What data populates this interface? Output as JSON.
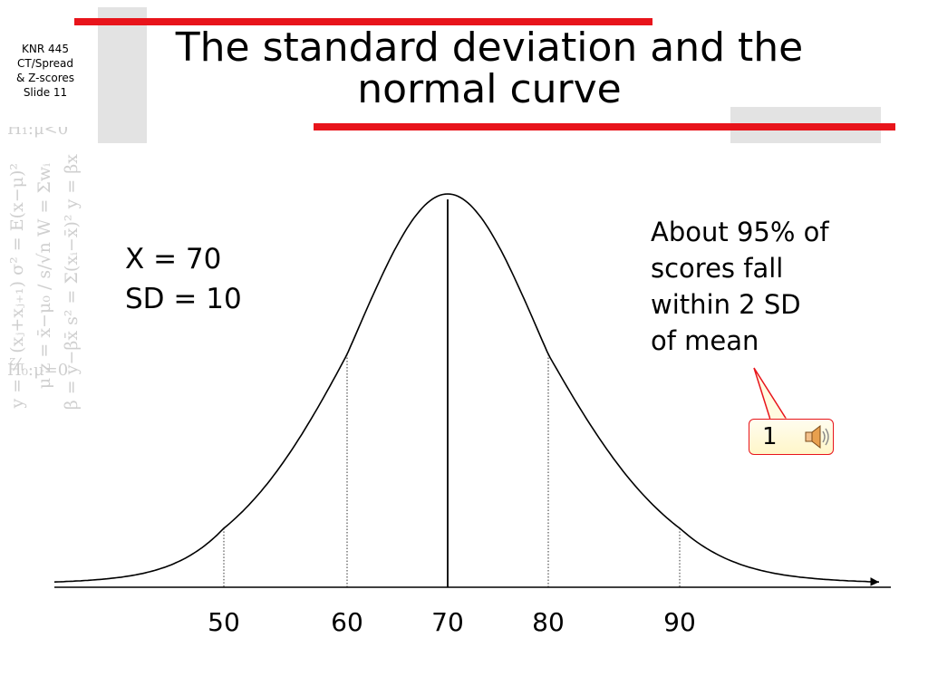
{
  "slide_label": [
    "KNR 445",
    "CT/Spread",
    "& Z-scores",
    "Slide 11"
  ],
  "title": [
    "The standard deviation and the",
    "normal curve"
  ],
  "stats": [
    "X = 70",
    "SD = 10"
  ],
  "note": [
    "About 95% of",
    "scores fall",
    "within 2 SD",
    "of mean"
  ],
  "callout": {
    "number": "1",
    "icon": "speaker-icon"
  },
  "watermark": {
    "h1": "H₁:μ<0",
    "h0": "H₀:μ=0",
    "col1": "y = ½(xⱼ+xⱼ₊₁)   σ² = E(x−μ)²",
    "col2": "μ  z = x̄−μ₀ / s/√n   W = Σwᵢ",
    "col3": "β = y−βx̄   s² = Σ(xᵢ−x̄)²   y = βx"
  },
  "colors": {
    "accent_red": "#e8141b",
    "bar_gray": "#e3e3e3",
    "watermark": "#cfcfcf"
  },
  "chart_data": {
    "type": "line",
    "mean": 70,
    "sd": 10,
    "x_ticks": [
      50,
      60,
      70,
      80,
      90
    ],
    "reference_lines": [
      50,
      60,
      70,
      80,
      90
    ],
    "xlim": [
      32,
      108
    ]
  }
}
